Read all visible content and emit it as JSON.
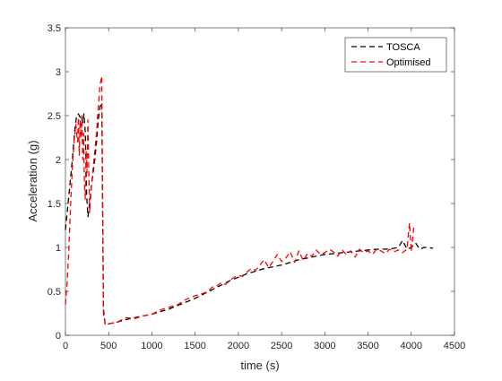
{
  "chart_data": {
    "type": "line",
    "title": "",
    "xlabel": "time (s)",
    "ylabel": "Acceleration (g)",
    "xlim": [
      0,
      4500
    ],
    "ylim": [
      0,
      3.5
    ],
    "x_ticks": [
      0,
      500,
      1000,
      1500,
      2000,
      2500,
      3000,
      3500,
      4000,
      4500
    ],
    "x_tick_labels": [
      "0",
      "500",
      "1000",
      "1500",
      "2000",
      "2500",
      "3000",
      "3500",
      "4000",
      "4500"
    ],
    "y_ticks": [
      0,
      0.5,
      1,
      1.5,
      2,
      2.5,
      3,
      3.5
    ],
    "y_tick_labels": [
      "0",
      "0.5",
      "1",
      "1.5",
      "2",
      "2.5",
      "3",
      "3.5"
    ],
    "grid": false,
    "legend_position": "top-right",
    "series": [
      {
        "name": "TOSCA",
        "color": "#000000",
        "dash": "dashed",
        "x": [
          0,
          40,
          80,
          110,
          130,
          150,
          170,
          185,
          200,
          215,
          230,
          245,
          260,
          280,
          300,
          320,
          340,
          360,
          380,
          400,
          420,
          440,
          460,
          500,
          600,
          700,
          800,
          900,
          1000,
          1100,
          1200,
          1300,
          1400,
          1500,
          1600,
          1700,
          1800,
          1900,
          2000,
          2100,
          2200,
          2300,
          2400,
          2500,
          2600,
          2700,
          2800,
          2900,
          3000,
          3100,
          3200,
          3300,
          3400,
          3500,
          3600,
          3700,
          3800,
          3850,
          3900,
          3950,
          4000,
          4050,
          4100,
          4150,
          4200,
          4250
        ],
        "y": [
          1.2,
          1.6,
          2.0,
          2.35,
          2.5,
          2.52,
          2.48,
          2.5,
          2.42,
          2.52,
          2.3,
          1.6,
          1.35,
          1.5,
          1.7,
          1.85,
          2.0,
          2.2,
          2.45,
          2.6,
          2.65,
          0.3,
          0.12,
          0.13,
          0.15,
          0.18,
          0.2,
          0.22,
          0.24,
          0.27,
          0.3,
          0.34,
          0.38,
          0.42,
          0.47,
          0.52,
          0.57,
          0.62,
          0.66,
          0.7,
          0.73,
          0.76,
          0.78,
          0.8,
          0.83,
          0.86,
          0.88,
          0.9,
          0.92,
          0.93,
          0.94,
          0.95,
          0.96,
          0.97,
          0.98,
          0.98,
          0.99,
          1.0,
          1.08,
          0.98,
          1.0,
          1.05,
          0.98,
          1.0,
          1.0,
          0.99
        ]
      },
      {
        "name": "Optimised",
        "color": "#ff0000",
        "dash": "dashed",
        "x": [
          0,
          20,
          40,
          60,
          80,
          100,
          120,
          140,
          150,
          160,
          170,
          180,
          190,
          200,
          210,
          220,
          230,
          240,
          250,
          260,
          270,
          280,
          300,
          320,
          340,
          360,
          380,
          400,
          420,
          440,
          460,
          500,
          600,
          700,
          800,
          900,
          1000,
          1100,
          1200,
          1300,
          1400,
          1500,
          1600,
          1650,
          1700,
          1750,
          1800,
          1850,
          1900,
          1950,
          2000,
          2050,
          2100,
          2150,
          2200,
          2250,
          2300,
          2350,
          2400,
          2450,
          2500,
          2550,
          2600,
          2650,
          2700,
          2750,
          2800,
          2850,
          2900,
          2950,
          3000,
          3050,
          3100,
          3150,
          3200,
          3250,
          3300,
          3350,
          3400,
          3450,
          3500,
          3550,
          3600,
          3650,
          3700,
          3750,
          3800,
          3850,
          3900,
          3950,
          3980,
          4000,
          4030
        ],
        "y": [
          0.35,
          0.6,
          1.0,
          1.5,
          1.9,
          2.2,
          2.4,
          2.2,
          2.48,
          2.05,
          2.45,
          2.25,
          2.5,
          2.0,
          2.3,
          1.7,
          1.55,
          2.1,
          1.85,
          2.45,
          1.9,
          1.4,
          1.7,
          1.9,
          2.1,
          2.3,
          2.6,
          2.85,
          2.95,
          0.25,
          0.12,
          0.13,
          0.15,
          0.2,
          0.19,
          0.22,
          0.24,
          0.29,
          0.32,
          0.35,
          0.41,
          0.45,
          0.48,
          0.5,
          0.55,
          0.56,
          0.6,
          0.58,
          0.62,
          0.66,
          0.68,
          0.67,
          0.72,
          0.76,
          0.74,
          0.8,
          0.86,
          0.77,
          0.84,
          0.92,
          0.84,
          0.88,
          0.95,
          0.83,
          0.96,
          0.85,
          0.93,
          0.9,
          0.97,
          0.92,
          0.94,
          0.98,
          0.95,
          0.9,
          0.97,
          0.92,
          0.96,
          0.89,
          0.98,
          0.94,
          0.96,
          0.92,
          0.98,
          0.96,
          0.93,
          0.98,
          0.95,
          0.97,
          0.94,
          0.98,
          1.28,
          0.95,
          1.25
        ]
      }
    ]
  }
}
